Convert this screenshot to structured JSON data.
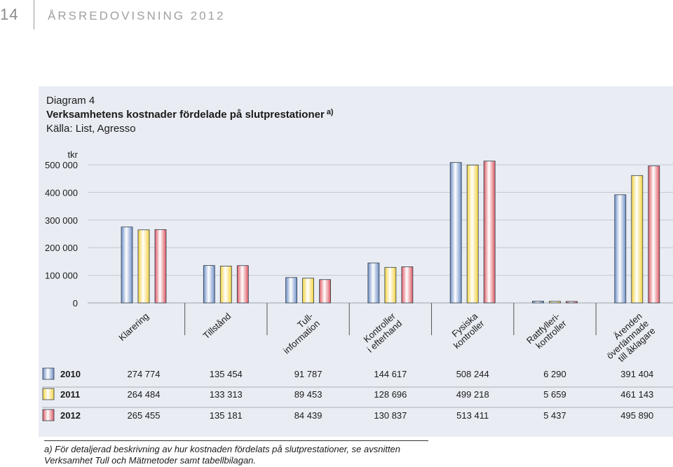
{
  "page_header": {
    "page_number": "14",
    "report_title": "ÅRSREDOVISNING 2012"
  },
  "chart_data": {
    "type": "bar",
    "label": "Diagram 4",
    "title": "Verksamhetens kostnader fördelade på slutprestationer",
    "title_note": "a)",
    "source": "Källa: List, Agresso",
    "ylabel": "tkr",
    "ylim": [
      0,
      500000
    ],
    "yticks": [
      "0",
      "100 000",
      "200 000",
      "300 000",
      "400 000",
      "500 000"
    ],
    "categories": [
      [
        "Klarering"
      ],
      [
        "Tillstånd"
      ],
      [
        "Tull-",
        "information"
      ],
      [
        "Kontroller",
        "i efterhand"
      ],
      [
        "Fysiska",
        "kontroller"
      ],
      [
        "Rattfylleri-",
        "kontroller"
      ],
      [
        "Ärenden",
        "överlämnade",
        "till åklagare"
      ]
    ],
    "series": [
      {
        "name": "2010",
        "values": [
          274774,
          135454,
          91787,
          144617,
          508244,
          6290,
          391404
        ],
        "value_labels": [
          "274 774",
          "135 454",
          "91 787",
          "144 617",
          "508 244",
          "6 290",
          "391 404"
        ],
        "color": "#9fb6dc"
      },
      {
        "name": "2011",
        "values": [
          264484,
          133313,
          89453,
          128696,
          499218,
          5659,
          461143
        ],
        "value_labels": [
          "264 484",
          "133 313",
          "89 453",
          "128 696",
          "499 218",
          "5 659",
          "461 143"
        ],
        "color": "#f7e27a"
      },
      {
        "name": "2012",
        "values": [
          265455,
          135181,
          84439,
          130837,
          513411,
          5437,
          495890
        ],
        "value_labels": [
          "265 455",
          "135 181",
          "84 439",
          "130 837",
          "513 411",
          "5 437",
          "495 890"
        ],
        "color": "#e6878e"
      }
    ],
    "grid": true,
    "legend": "table-below"
  },
  "footnote": {
    "line1": "a) För detaljerad beskrivning av hur kostnaden fördelats på slutprestationer, se avsnitten",
    "line2": "Verksamhet Tull och Mätmetoder samt tabellbilagan."
  }
}
